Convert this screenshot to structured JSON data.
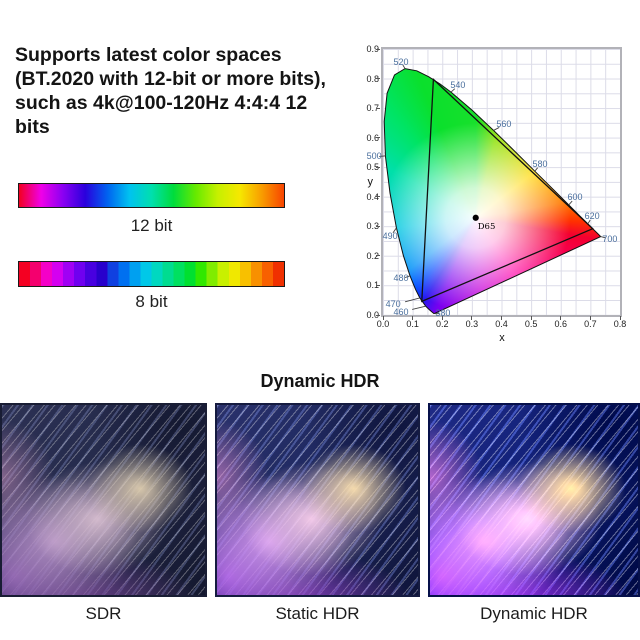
{
  "headline": {
    "text": "Supports latest color spaces (BT.2020 with 12-bit or more bits), such as 4k@100-120Hz 4:4:4 12 bits",
    "lines": [
      "Supports latest color spaces",
      "(BT.2020 with 12-bit or more bits),",
      "such as 4k@100-120Hz 4:4:4 12",
      "bits"
    ]
  },
  "bit_depth_bars": {
    "bar_12": {
      "label": "12 bit",
      "colors": [
        "#f20020",
        "#f000e8",
        "#8a00f2",
        "#2a00dc",
        "#0062f0",
        "#00c2f0",
        "#00dfae",
        "#00dc3c",
        "#66ea00",
        "#c6f000",
        "#f6e800",
        "#f89c00",
        "#f84400"
      ]
    },
    "bar_8": {
      "label": "8 bit",
      "bands": [
        "#f40022",
        "#f4006e",
        "#f400c8",
        "#d400f0",
        "#a000f4",
        "#7000f0",
        "#4800e0",
        "#2800cc",
        "#1040e0",
        "#0070f0",
        "#00a0f0",
        "#00c8e8",
        "#00d8c0",
        "#00dc90",
        "#00e060",
        "#00e030",
        "#30e800",
        "#80ec00",
        "#c8f000",
        "#f0e800",
        "#f8c000",
        "#f89000",
        "#f86000",
        "#f03000"
      ]
    }
  },
  "chart_data": {
    "type": "chromaticity-diagram",
    "x_axis": {
      "title": "x",
      "ticks": [
        "0.0",
        "0.1",
        "0.2",
        "0.3",
        "0.4",
        "0.5",
        "0.6",
        "0.7",
        "0.8"
      ],
      "range": [
        0,
        0.8
      ]
    },
    "y_axis": {
      "title": "y",
      "ticks": [
        "0.0",
        "0.1",
        "0.2",
        "0.3",
        "0.4",
        "0.5",
        "0.6",
        "0.7",
        "0.8",
        "0.9"
      ],
      "range": [
        0,
        0.9
      ]
    },
    "grid": true,
    "grid_step": 0.05,
    "white_point": {
      "label": "D65",
      "x": 0.313,
      "y": 0.329
    },
    "gamut_triangle": {
      "vertices": [
        [
          0.17,
          0.797
        ],
        [
          0.708,
          0.292
        ],
        [
          0.131,
          0.046
        ]
      ]
    },
    "spectral_locus": [
      [
        380,
        0.1741,
        0.005
      ],
      [
        420,
        0.1714,
        0.0051
      ],
      [
        440,
        0.1644,
        0.0109
      ],
      [
        450,
        0.1566,
        0.0177
      ],
      [
        460,
        0.144,
        0.0297
      ],
      [
        470,
        0.1241,
        0.0578
      ],
      [
        475,
        0.1096,
        0.0868
      ],
      [
        480,
        0.0913,
        0.1327
      ],
      [
        485,
        0.0687,
        0.2007
      ],
      [
        490,
        0.0454,
        0.295
      ],
      [
        495,
        0.0235,
        0.4127
      ],
      [
        500,
        0.0082,
        0.5384
      ],
      [
        505,
        0.0039,
        0.6548
      ],
      [
        510,
        0.0139,
        0.7502
      ],
      [
        515,
        0.0389,
        0.812
      ],
      [
        520,
        0.0743,
        0.8338
      ],
      [
        525,
        0.1142,
        0.8262
      ],
      [
        530,
        0.1547,
        0.8059
      ],
      [
        535,
        0.1929,
        0.7816
      ],
      [
        540,
        0.2296,
        0.7543
      ],
      [
        550,
        0.3016,
        0.6923
      ],
      [
        560,
        0.3731,
        0.6245
      ],
      [
        570,
        0.4441,
        0.5547
      ],
      [
        580,
        0.5125,
        0.4866
      ],
      [
        590,
        0.5752,
        0.4242
      ],
      [
        600,
        0.627,
        0.3725
      ],
      [
        610,
        0.6658,
        0.334
      ],
      [
        620,
        0.6915,
        0.3083
      ],
      [
        635,
        0.714,
        0.2859
      ],
      [
        650,
        0.726,
        0.274
      ],
      [
        700,
        0.7347,
        0.2653
      ]
    ],
    "wavelength_labels": [
      {
        "nm": "520",
        "x": 0.0743,
        "y": 0.8338,
        "lx": 0.061,
        "ly": 0.856
      },
      {
        "nm": "540",
        "x": 0.2296,
        "y": 0.7543,
        "lx": 0.253,
        "ly": 0.775
      },
      {
        "nm": "560",
        "x": 0.3731,
        "y": 0.6245,
        "lx": 0.408,
        "ly": 0.643
      },
      {
        "nm": "580",
        "x": 0.5125,
        "y": 0.4866,
        "lx": 0.53,
        "ly": 0.508
      },
      {
        "nm": "600",
        "x": 0.627,
        "y": 0.3725,
        "lx": 0.648,
        "ly": 0.396
      },
      {
        "nm": "620",
        "x": 0.6915,
        "y": 0.3083,
        "lx": 0.706,
        "ly": 0.332
      },
      {
        "nm": "700",
        "x": 0.7347,
        "y": 0.2653,
        "lx": 0.766,
        "ly": 0.257
      },
      {
        "nm": "500",
        "x": 0.0082,
        "y": 0.5384,
        "lx": -0.03,
        "ly": 0.535
      },
      {
        "nm": "490",
        "x": 0.0454,
        "y": 0.295,
        "lx": 0.024,
        "ly": 0.264
      },
      {
        "nm": "480",
        "x": 0.0913,
        "y": 0.1327,
        "lx": 0.061,
        "ly": 0.122
      },
      {
        "nm": "470",
        "x": 0.1241,
        "y": 0.0578,
        "lx": 0.034,
        "ly": 0.034
      },
      {
        "nm": "460",
        "x": 0.144,
        "y": 0.0297,
        "lx": 0.061,
        "ly": 0.01
      },
      {
        "nm": "380",
        "x": 0.1741,
        "y": 0.005,
        "lx": 0.202,
        "ly": 0.004
      }
    ]
  },
  "hdr_section": {
    "title": "Dynamic HDR",
    "images": [
      {
        "label": "SDR"
      },
      {
        "label": "Static HDR"
      },
      {
        "label": "Dynamic HDR"
      }
    ]
  }
}
